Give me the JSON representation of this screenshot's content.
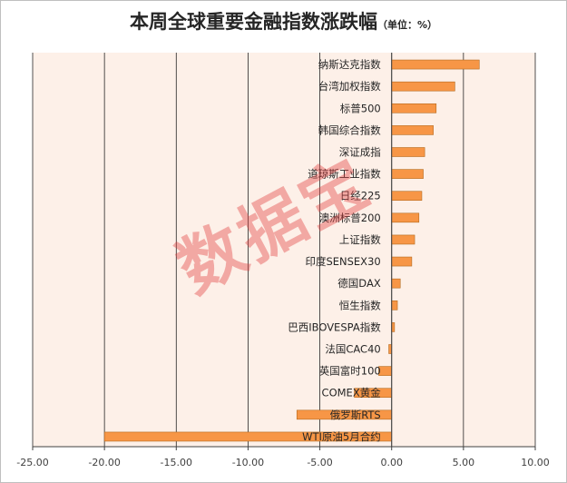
{
  "chart_data": {
    "type": "bar",
    "orientation": "horizontal",
    "title": "本周全球重要金融指数涨跌幅",
    "unit_label": "（单位：%）",
    "watermark": "数据宝",
    "categories": [
      "纳斯达克指数",
      "台湾加权指数",
      "标普500",
      "韩国综合指数",
      "深证成指",
      "道琼斯工业指数",
      "日经225",
      "澳洲标普200",
      "上证指数",
      "印度SENSEX30",
      "德国DAX",
      "恒生指数",
      "巴西IBOVESPA指数",
      "法国CAC40",
      "英国富时100",
      "COMEX黄金",
      "俄罗斯RTS",
      "WTI原油5月合约"
    ],
    "values": [
      6.1,
      4.4,
      3.1,
      2.9,
      2.3,
      2.2,
      2.1,
      1.9,
      1.6,
      1.4,
      0.6,
      0.4,
      0.2,
      -0.2,
      -0.9,
      -2.6,
      -6.6,
      -20.0
    ],
    "xlim": [
      -25,
      10
    ],
    "xticks": [
      "-25.00",
      "-20.00",
      "-15.00",
      "-10.00",
      "-5.00",
      "0.00",
      "5.00",
      "10.00"
    ],
    "xtick_values": [
      -25,
      -20,
      -15,
      -10,
      -5,
      0,
      5,
      10
    ],
    "grid": true,
    "colors": {
      "bar": "#f79646",
      "bar_edge": "#b46a1e",
      "plot_bg": "#fdf0e8",
      "grid": "#262626"
    }
  }
}
